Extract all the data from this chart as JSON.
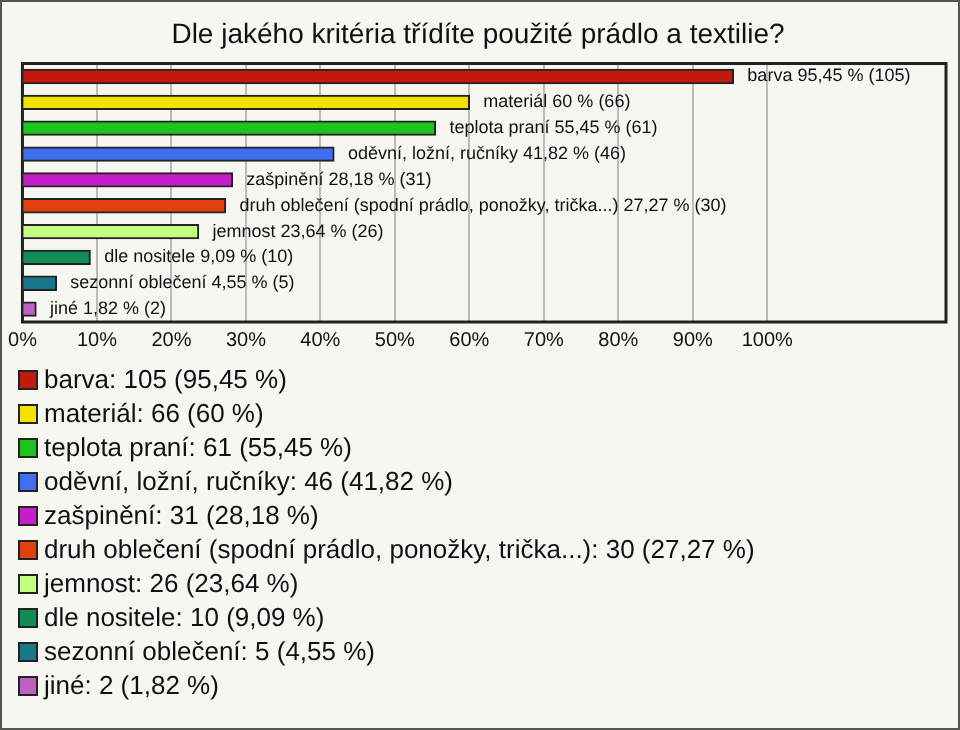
{
  "chart_data": {
    "type": "bar",
    "orientation": "horizontal",
    "stacked": true,
    "title": "Dle jakého kritéria třídíte použité prádlo a textilie?",
    "categories": [
      null,
      null,
      null,
      null,
      null,
      null,
      null,
      null,
      null,
      null
    ],
    "series": [
      {
        "name": "barva: 105 (95,45 %)",
        "color": "#c41a0e",
        "values": [
          95.45,
          null,
          null,
          null,
          null,
          null,
          null,
          null,
          null,
          null
        ],
        "value_labels": [
          "barva 95,45 % (105)",
          null,
          null,
          null,
          null,
          null,
          null,
          null,
          null,
          null
        ]
      },
      {
        "name": "materiál: 66 (60 %)",
        "color": "#f2e200",
        "values": [
          null,
          60,
          null,
          null,
          null,
          null,
          null,
          null,
          null,
          null
        ],
        "value_labels": [
          null,
          "materiál 60 % (66)",
          null,
          null,
          null,
          null,
          null,
          null,
          null,
          null
        ]
      },
      {
        "name": "teplota praní: 61 (55,45 %)",
        "color": "#1ec41e",
        "values": [
          null,
          null,
          55.45,
          null,
          null,
          null,
          null,
          null,
          null,
          null
        ],
        "value_labels": [
          null,
          null,
          "teplota praní 55,45 % (61)",
          null,
          null,
          null,
          null,
          null,
          null,
          null
        ]
      },
      {
        "name": "oděvní, ložní, ručníky: 46 (41,82 %)",
        "color": "#3f6ff0",
        "values": [
          null,
          null,
          null,
          41.82,
          null,
          null,
          null,
          null,
          null,
          null
        ],
        "value_labels": [
          null,
          null,
          null,
          "oděvní, ložní, ručníky 41,82 % (46)",
          null,
          null,
          null,
          null,
          null,
          null
        ]
      },
      {
        "name": "zašpinění: 31 (28,18 %)",
        "color": "#c41ec8",
        "values": [
          null,
          null,
          null,
          null,
          28.18,
          null,
          null,
          null,
          null,
          null
        ],
        "value_labels": [
          null,
          null,
          null,
          null,
          "zašpinění 28,18 % (31)",
          null,
          null,
          null,
          null,
          null
        ]
      },
      {
        "name": "druh oblečení (spodní prádlo, ponožky, trička...): 30 (27,27 %)",
        "color": "#e2400e",
        "values": [
          null,
          null,
          null,
          null,
          null,
          27.27,
          null,
          null,
          null,
          null
        ],
        "value_labels": [
          null,
          null,
          null,
          null,
          null,
          "druh oblečení (spodní prádlo, ponožky, trička...) 27,27 % (30)",
          null,
          null,
          null,
          null
        ]
      },
      {
        "name": "jemnost: 26 (23,64 %)",
        "color": "#c4ff82",
        "values": [
          null,
          null,
          null,
          null,
          null,
          null,
          23.64,
          null,
          null,
          null
        ],
        "value_labels": [
          null,
          null,
          null,
          null,
          null,
          null,
          "jemnost 23,64 % (26)",
          null,
          null,
          null
        ]
      },
      {
        "name": "dle nositele: 10 (9,09 %)",
        "color": "#118c55",
        "values": [
          null,
          null,
          null,
          null,
          null,
          null,
          null,
          9.09,
          null,
          null
        ],
        "value_labels": [
          null,
          null,
          null,
          null,
          null,
          null,
          null,
          "dle nositele 9,09 % (10)",
          null,
          null
        ]
      },
      {
        "name": "sezonní oblečení: 5 (4,55 %)",
        "color": "#17788c",
        "values": [
          null,
          null,
          null,
          null,
          null,
          null,
          null,
          null,
          4.55,
          null
        ],
        "value_labels": [
          null,
          null,
          null,
          null,
          null,
          null,
          null,
          null,
          "sezonní oblečení 4,55 % (5)",
          null
        ]
      },
      {
        "name": "jiné: 2 (1,82 %)",
        "color": "#c060c0",
        "values": [
          null,
          null,
          null,
          null,
          null,
          null,
          null,
          null,
          null,
          1.82
        ],
        "value_labels": [
          null,
          null,
          null,
          null,
          null,
          null,
          null,
          null,
          null,
          "jiné 1,82 % (2)"
        ]
      }
    ],
    "xlim": [
      0,
      124
    ],
    "xticks": [
      {
        "value": 0,
        "label": "0%"
      },
      {
        "value": 10,
        "label": "10%"
      },
      {
        "value": 20,
        "label": "20%"
      },
      {
        "value": 30,
        "label": "30%"
      },
      {
        "value": 40,
        "label": "40%"
      },
      {
        "value": 50,
        "label": "50%"
      },
      {
        "value": 60,
        "label": "60%"
      },
      {
        "value": 70,
        "label": "70%"
      },
      {
        "value": 80,
        "label": "80%"
      },
      {
        "value": 90,
        "label": "90%"
      },
      {
        "value": 100,
        "label": "100%"
      }
    ],
    "grid": "x",
    "legend": "bottom"
  }
}
